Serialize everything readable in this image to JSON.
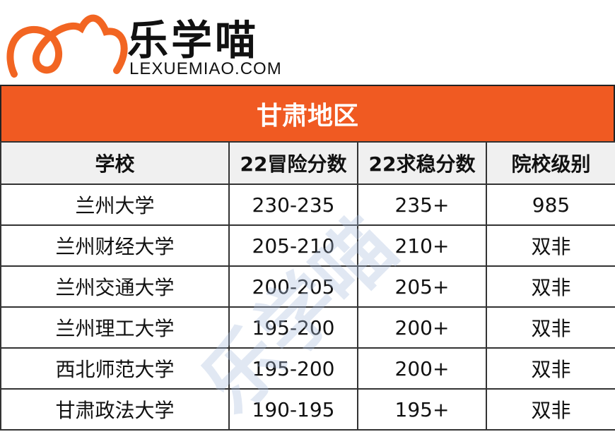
{
  "logo": {
    "name": "乐学喵",
    "domain": "LEXUEMIAO.COM"
  },
  "title": "甘肃地区",
  "watermark": "乐学喵",
  "table": {
    "header": [
      "学校",
      "22冒险分数",
      "22求稳分数",
      "院校级别"
    ],
    "rows": [
      [
        "兰州大学",
        "230-235",
        "235+",
        "985"
      ],
      [
        "兰州财经大学",
        "205-210",
        "210+",
        "双非"
      ],
      [
        "兰州交通大学",
        "200-205",
        "205+",
        "双非"
      ],
      [
        "兰州理工大学",
        "195-200",
        "200+",
        "双非"
      ],
      [
        "西北师范大学",
        "195-200",
        "200+",
        "双非"
      ],
      [
        "甘肃政法大学",
        "190-195",
        "195+",
        "双非"
      ]
    ]
  }
}
